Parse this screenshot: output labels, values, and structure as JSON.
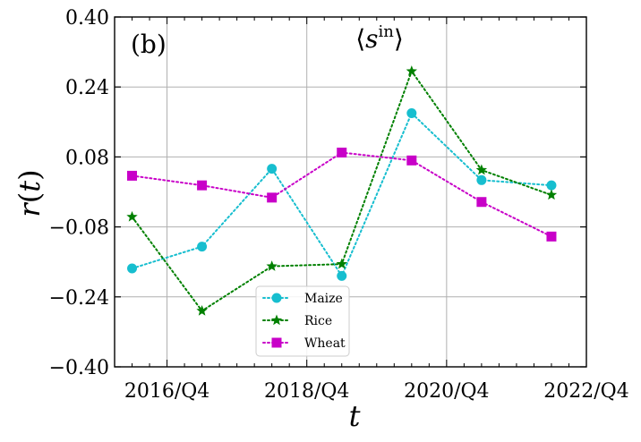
{
  "chart_data": {
    "type": "line",
    "panel_label": "(b)",
    "title": "⟨s^in⟩",
    "title_parts": {
      "open": "⟨",
      "symbol": "s",
      "superscript": "in",
      "close": "⟩"
    },
    "xlabel": "t",
    "ylabel": "r(t)",
    "ylabel_parts": {
      "func": "r",
      "open": "(",
      "arg": "t",
      "close": ")"
    },
    "grid": true,
    "legend_position": "lower-center",
    "xlim": [
      2015.75,
      2022.5
    ],
    "ylim": [
      -0.4,
      0.4
    ],
    "y_ticks": [
      -0.4,
      -0.24,
      -0.08,
      0.08,
      0.24,
      0.4
    ],
    "y_tick_labels": [
      "−0.40",
      "−0.24",
      "−0.08",
      "0.08",
      "0.24",
      "0.40"
    ],
    "x_major_ticks": [
      2016.5,
      2018.5,
      2020.5,
      2022.5
    ],
    "x_tick_labels": [
      "2016/Q4",
      "2018/Q4",
      "2020/Q4",
      "2022/Q4"
    ],
    "x_minor_step": 0.25,
    "x": [
      2016,
      2017,
      2018,
      2019,
      2020,
      2021,
      2022
    ],
    "series": [
      {
        "name": "Maize",
        "color": "#17becf",
        "marker": "circle",
        "line_style": "dotted",
        "values": [
          -0.175,
          -0.125,
          0.053,
          -0.192,
          0.18,
          0.027,
          0.015
        ]
      },
      {
        "name": "Rice",
        "color": "#008000",
        "marker": "star",
        "line_style": "dotted",
        "values": [
          -0.057,
          -0.272,
          -0.17,
          -0.165,
          0.276,
          0.05,
          -0.007
        ]
      },
      {
        "name": "Wheat",
        "color": "#c800c8",
        "marker": "square",
        "line_style": "dotted",
        "values": [
          0.037,
          0.015,
          -0.013,
          0.09,
          0.072,
          -0.023,
          -0.102
        ]
      }
    ]
  }
}
